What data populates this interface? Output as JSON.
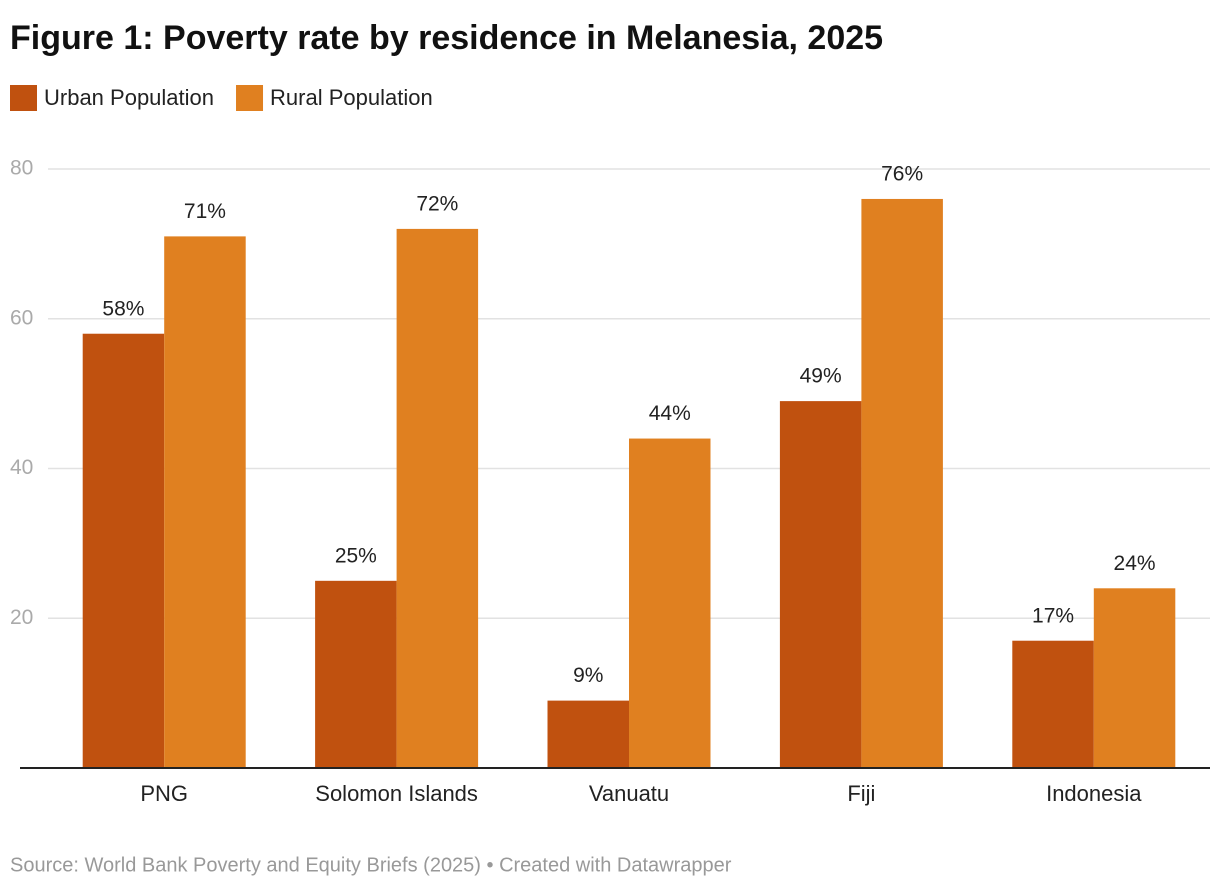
{
  "chart_data": {
    "type": "bar",
    "title": "Figure 1: Poverty rate by residence in Melanesia, 2025",
    "categories": [
      "PNG",
      "Solomon Islands",
      "Vanuatu",
      "Fiji",
      "Indonesia"
    ],
    "series": [
      {
        "name": "Urban Population",
        "color": "#c0510f",
        "values": [
          58,
          25,
          9,
          49,
          17
        ],
        "value_labels": [
          "58%",
          "25%",
          "9%",
          "49%",
          "17%"
        ]
      },
      {
        "name": "Rural Population",
        "color": "#e08020",
        "values": [
          71,
          72,
          44,
          76,
          24
        ],
        "value_labels": [
          "71%",
          "72%",
          "44%",
          "76%",
          "24%"
        ]
      }
    ],
    "ylim": [
      0,
      80
    ],
    "yticks": [
      20,
      40,
      60,
      80
    ],
    "grid": true,
    "legend": "top",
    "source": "Source: World Bank Poverty and Equity Briefs (2025) • Created with Datawrapper"
  }
}
